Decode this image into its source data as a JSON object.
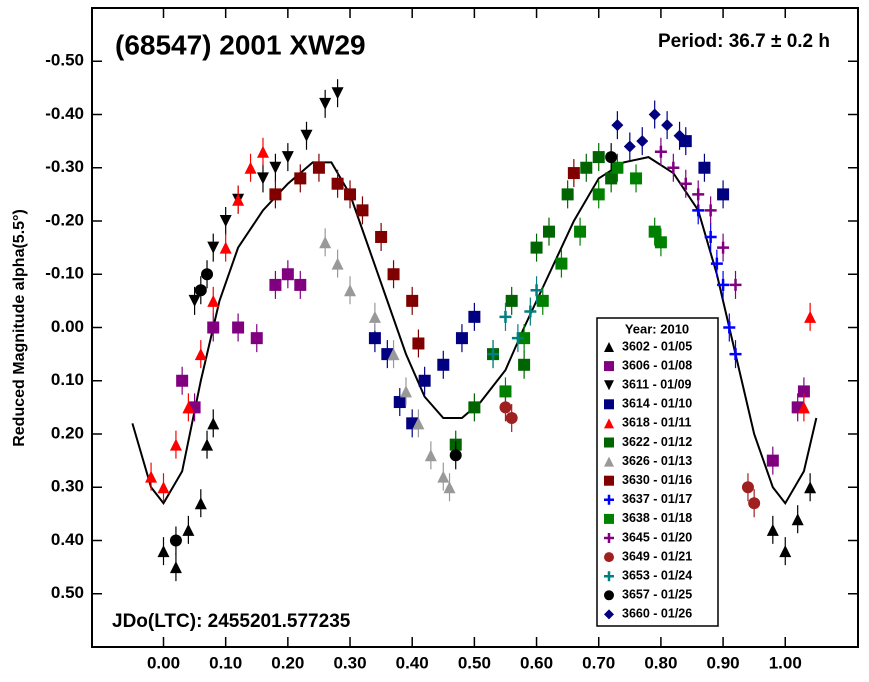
{
  "chart_data": {
    "type": "scatter",
    "title": "(68547) 2001 XW29",
    "subtitle": "Period: 36.7 ± 0.2 h",
    "y_label": "Reduced Magnitude alpha(5.5°)",
    "annotation": "JDo(LTC): 2455201.577235",
    "legend_title": "Year: 2010",
    "legend_position": "lower right",
    "xlim": [
      -0.115,
      1.117
    ],
    "ylim": [
      -0.6,
      0.6
    ],
    "y_inverted": true,
    "xticks": [
      {
        "value": 0,
        "label": "0.00"
      },
      {
        "value": 0.1,
        "label": "0.10"
      },
      {
        "value": 0.2,
        "label": "0.20"
      },
      {
        "value": 0.3,
        "label": "0.30"
      },
      {
        "value": 0.4,
        "label": "0.40"
      },
      {
        "value": 0.5,
        "label": "0.50"
      },
      {
        "value": 0.6,
        "label": "0.60"
      },
      {
        "value": 0.7,
        "label": "0.70"
      },
      {
        "value": 0.8,
        "label": "0.80"
      },
      {
        "value": 0.9,
        "label": "0.90"
      },
      {
        "value": 1,
        "label": "1.00"
      }
    ],
    "yticks": [
      {
        "value": -0.5,
        "label": "-0.50"
      },
      {
        "value": -0.4,
        "label": "-0.40"
      },
      {
        "value": -0.3,
        "label": "-0.30"
      },
      {
        "value": -0.2,
        "label": "-0.20"
      },
      {
        "value": -0.1,
        "label": "-0.10"
      },
      {
        "value": 0,
        "label": "0.00"
      },
      {
        "value": 0.1,
        "label": "0.10"
      },
      {
        "value": 0.2,
        "label": "0.20"
      },
      {
        "value": 0.3,
        "label": "0.30"
      },
      {
        "value": 0.4,
        "label": "0.40"
      },
      {
        "value": 0.5,
        "label": "0.50"
      }
    ],
    "fit_curve": {
      "color": "#000000",
      "x": [
        -0.05,
        -0.02,
        0.0,
        0.03,
        0.06,
        0.09,
        0.12,
        0.16,
        0.2,
        0.24,
        0.27,
        0.3,
        0.33,
        0.36,
        0.39,
        0.42,
        0.45,
        0.48,
        0.51,
        0.55,
        0.58,
        0.62,
        0.66,
        0.7,
        0.74,
        0.78,
        0.82,
        0.86,
        0.89,
        0.92,
        0.95,
        0.98,
        1.0,
        1.03,
        1.05
      ],
      "y": [
        0.18,
        0.3,
        0.33,
        0.27,
        0.1,
        -0.05,
        -0.15,
        -0.22,
        -0.27,
        -0.31,
        -0.31,
        -0.25,
        -0.15,
        -0.05,
        0.05,
        0.13,
        0.17,
        0.17,
        0.14,
        0.08,
        0.0,
        -0.1,
        -0.2,
        -0.28,
        -0.31,
        -0.32,
        -0.29,
        -0.22,
        -0.1,
        0.05,
        0.2,
        0.3,
        0.33,
        0.27,
        0.17
      ]
    },
    "series": [
      {
        "name": "3602 - 01/05",
        "color": "#000000",
        "marker": "triangle-up",
        "x": [
          0.0,
          0.02,
          0.04,
          0.06,
          0.07,
          0.08,
          0.98,
          1.0,
          1.02,
          1.04
        ],
        "values": [
          0.42,
          0.45,
          0.38,
          0.33,
          0.22,
          0.18,
          0.38,
          0.42,
          0.36,
          0.3
        ]
      },
      {
        "name": "3606 - 01/08",
        "color": "#800080",
        "marker": "square",
        "x": [
          0.03,
          0.05,
          0.08,
          0.12,
          0.15,
          0.18,
          0.2,
          0.22,
          1.02,
          1.03,
          0.98
        ],
        "values": [
          0.1,
          0.15,
          0.0,
          0.0,
          0.02,
          -0.08,
          -0.1,
          -0.08,
          0.15,
          0.12,
          0.25
        ]
      },
      {
        "name": "3611 - 01/09",
        "color": "#000000",
        "marker": "triangle-down",
        "x": [
          0.05,
          0.08,
          0.1,
          0.12,
          0.16,
          0.18,
          0.2,
          0.23,
          0.26,
          0.28
        ],
        "values": [
          -0.05,
          -0.15,
          -0.2,
          -0.24,
          -0.28,
          -0.3,
          -0.32,
          -0.36,
          -0.42,
          -0.44
        ]
      },
      {
        "name": "3614 - 01/10",
        "color": "#000080",
        "marker": "square",
        "x": [
          0.34,
          0.36,
          0.38,
          0.4,
          0.42,
          0.45,
          0.48,
          0.5,
          0.84,
          0.87,
          0.9
        ],
        "values": [
          0.02,
          0.05,
          0.14,
          0.18,
          0.1,
          0.07,
          0.02,
          -0.02,
          -0.35,
          -0.3,
          -0.25
        ]
      },
      {
        "name": "3618 - 01/11",
        "color": "#ff0000",
        "marker": "triangle-up",
        "x": [
          -0.02,
          0.0,
          0.02,
          0.04,
          0.06,
          0.08,
          0.1,
          0.12,
          0.14,
          0.16,
          1.04,
          1.03
        ],
        "values": [
          0.28,
          0.3,
          0.22,
          0.15,
          0.05,
          -0.05,
          -0.15,
          -0.24,
          -0.3,
          -0.33,
          -0.02,
          0.15
        ]
      },
      {
        "name": "3622 - 01/12",
        "color": "#006400",
        "marker": "square",
        "x": [
          0.47,
          0.5,
          0.53,
          0.56,
          0.58,
          0.6,
          0.62,
          0.65,
          0.68,
          0.7,
          0.72
        ],
        "values": [
          0.22,
          0.15,
          0.05,
          -0.05,
          0.07,
          -0.15,
          -0.18,
          -0.25,
          -0.3,
          -0.32,
          -0.28
        ]
      },
      {
        "name": "3626 - 01/13",
        "color": "#999999",
        "marker": "triangle-up",
        "x": [
          0.26,
          0.28,
          0.3,
          0.34,
          0.37,
          0.39,
          0.41,
          0.43,
          0.45,
          0.46
        ],
        "values": [
          -0.16,
          -0.12,
          -0.07,
          -0.02,
          0.05,
          0.12,
          0.18,
          0.24,
          0.28,
          0.3
        ]
      },
      {
        "name": "3630 - 01/16",
        "color": "#800000",
        "marker": "square",
        "x": [
          0.18,
          0.22,
          0.25,
          0.28,
          0.3,
          0.32,
          0.35,
          0.37,
          0.4,
          0.41,
          0.66
        ],
        "values": [
          -0.25,
          -0.28,
          -0.3,
          -0.27,
          -0.25,
          -0.22,
          -0.17,
          -0.1,
          -0.05,
          0.03,
          -0.29
        ]
      },
      {
        "name": "3637 - 01/17",
        "color": "#0000ff",
        "marker": "plus",
        "x": [
          0.86,
          0.88,
          0.89,
          0.9,
          0.91,
          0.92
        ],
        "values": [
          -0.22,
          -0.17,
          -0.12,
          -0.08,
          0.0,
          0.05
        ]
      },
      {
        "name": "3638 - 01/18",
        "color": "#008000",
        "marker": "square",
        "x": [
          0.55,
          0.58,
          0.61,
          0.64,
          0.67,
          0.7,
          0.73,
          0.76,
          0.79,
          0.8
        ],
        "values": [
          0.12,
          0.02,
          -0.05,
          -0.12,
          -0.18,
          -0.25,
          -0.3,
          -0.28,
          -0.18,
          -0.16
        ]
      },
      {
        "name": "3645 - 01/20",
        "color": "#800080",
        "marker": "plus",
        "x": [
          0.8,
          0.82,
          0.84,
          0.86,
          0.88,
          0.9,
          0.92
        ],
        "values": [
          -0.33,
          -0.3,
          -0.27,
          -0.25,
          -0.22,
          -0.15,
          -0.08
        ]
      },
      {
        "name": "3649 - 01/21",
        "color": "#a02020",
        "marker": "circle",
        "x": [
          0.55,
          0.56,
          0.94,
          0.95
        ],
        "values": [
          0.15,
          0.17,
          0.3,
          0.33
        ]
      },
      {
        "name": "3653 - 01/24",
        "color": "#008080",
        "marker": "plus",
        "x": [
          0.53,
          0.55,
          0.57,
          0.59,
          0.6
        ],
        "values": [
          0.05,
          -0.02,
          0.02,
          -0.03,
          -0.07
        ]
      },
      {
        "name": "3657 - 01/25",
        "color": "#000000",
        "marker": "circle",
        "x": [
          0.06,
          0.07,
          0.02,
          0.47,
          0.72
        ],
        "values": [
          -0.07,
          -0.1,
          0.4,
          0.24,
          -0.32
        ]
      },
      {
        "name": "3660 - 01/26",
        "color": "#000080",
        "marker": "diamond",
        "x": [
          0.73,
          0.75,
          0.77,
          0.79,
          0.81,
          0.83
        ],
        "values": [
          -0.38,
          -0.34,
          -0.35,
          -0.4,
          -0.38,
          -0.36
        ]
      }
    ]
  }
}
